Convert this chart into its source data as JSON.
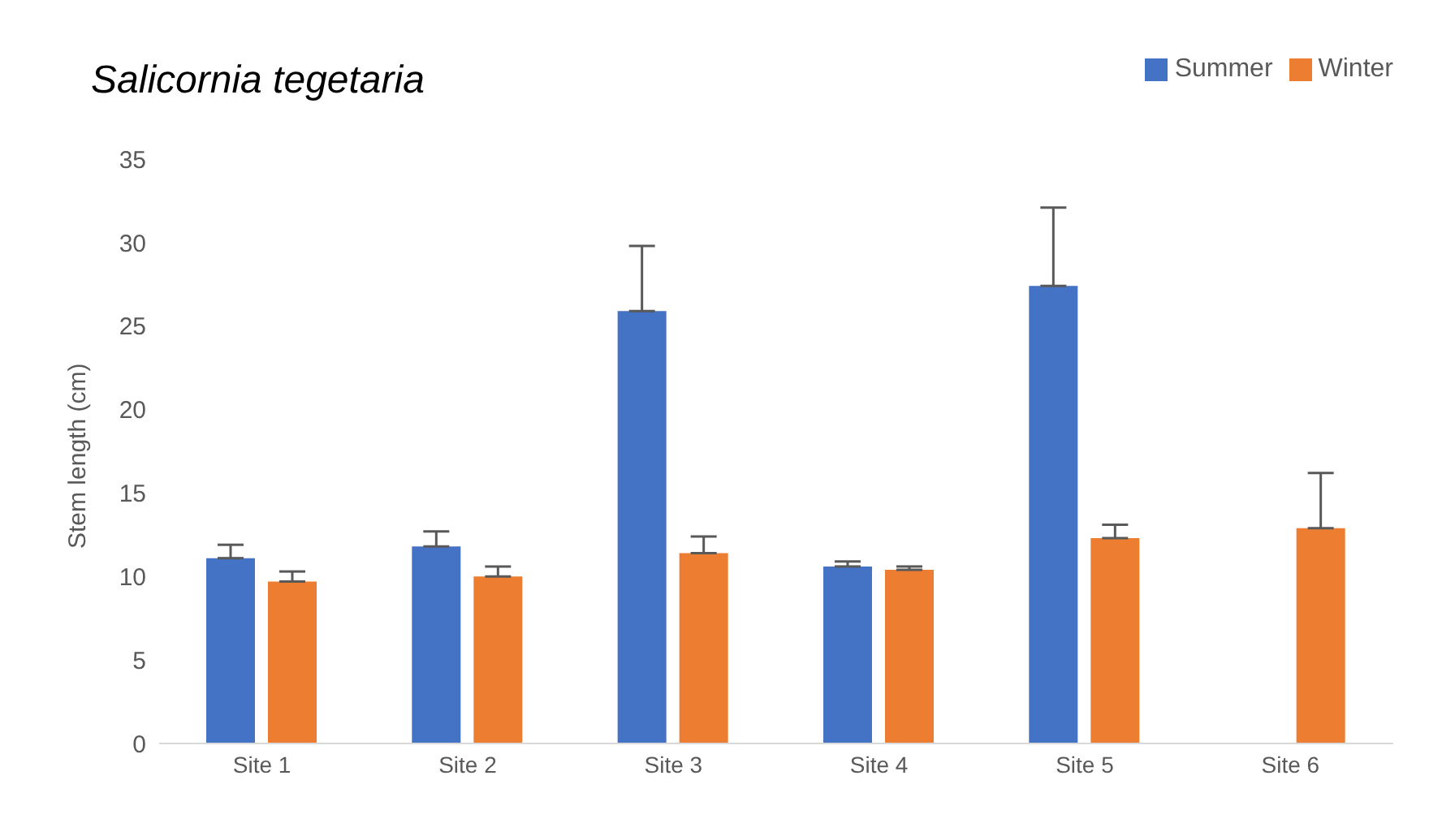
{
  "chart_data": {
    "type": "bar",
    "title": "Salicornia tegetaria",
    "ylabel": "Stem length (cm)",
    "categories": [
      "Site 1",
      "Site 2",
      "Site 3",
      "Site 4",
      "Site 5",
      "Site 6"
    ],
    "series": [
      {
        "name": "Summer",
        "color": "#4472c4",
        "values": [
          11.1,
          11.8,
          25.9,
          10.6,
          27.4,
          null
        ],
        "errors": [
          [
            11.1,
            11.9
          ],
          [
            11.8,
            12.7
          ],
          [
            25.9,
            29.8
          ],
          [
            10.6,
            10.9
          ],
          [
            27.4,
            32.1
          ],
          null
        ]
      },
      {
        "name": "Winter",
        "color": "#ed7d31",
        "values": [
          9.7,
          10.0,
          11.4,
          10.4,
          12.3,
          12.9
        ],
        "errors": [
          [
            9.7,
            10.3
          ],
          [
            10.0,
            10.6
          ],
          [
            11.4,
            12.4
          ],
          [
            10.4,
            10.6
          ],
          [
            12.3,
            13.1
          ],
          [
            12.9,
            16.2
          ]
        ]
      }
    ],
    "ylim": [
      0,
      35
    ],
    "yticks": [
      0,
      5,
      10,
      15,
      20,
      25,
      30,
      35
    ],
    "grid": false,
    "legend": "top right"
  }
}
